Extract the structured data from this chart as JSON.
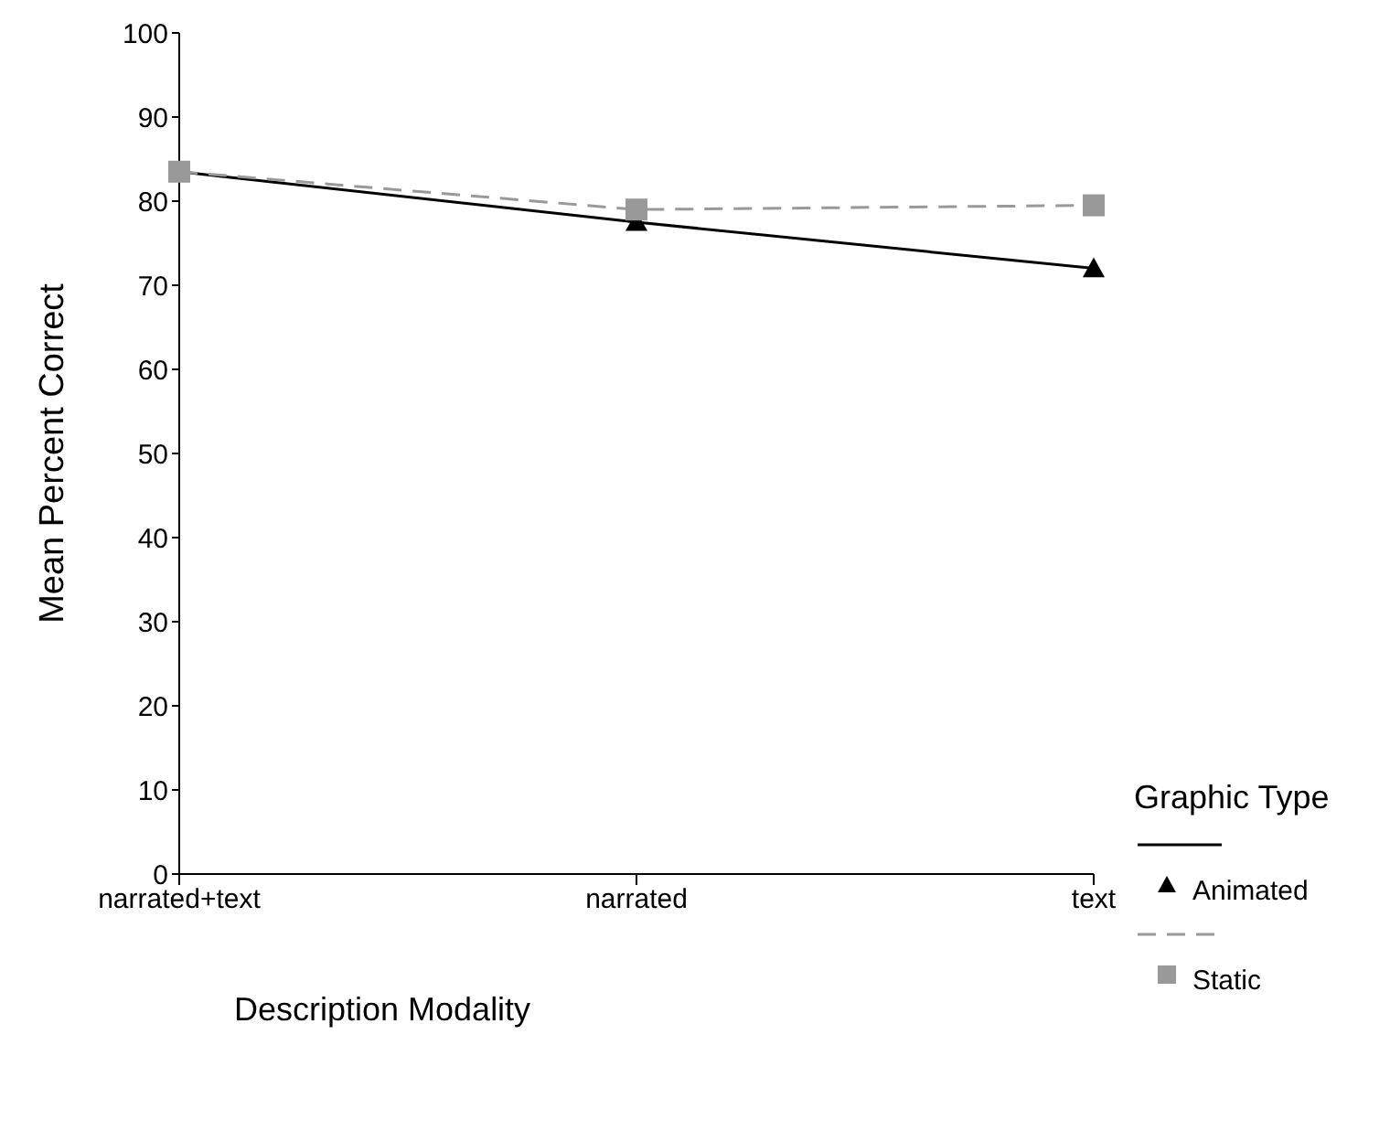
{
  "chart_data": {
    "type": "line",
    "xlabel": "Description Modality",
    "ylabel": "Mean Percent Correct",
    "legend_title": "Graphic Type",
    "categories": [
      "narrated+text",
      "narrated",
      "text"
    ],
    "series": [
      {
        "name": "Animated",
        "color": "#000000",
        "values": [
          83.5,
          77.5,
          72
        ],
        "marker": "triangle",
        "line_style": "solid"
      },
      {
        "name": "Static",
        "color": "#999999",
        "values": [
          83.5,
          79,
          79.5
        ],
        "marker": "square",
        "line_style": "dashed"
      }
    ],
    "ylim": [
      0,
      100
    ],
    "yticks": [
      0,
      10,
      20,
      30,
      40,
      50,
      60,
      70,
      80,
      90,
      100
    ],
    "legend": "right"
  }
}
